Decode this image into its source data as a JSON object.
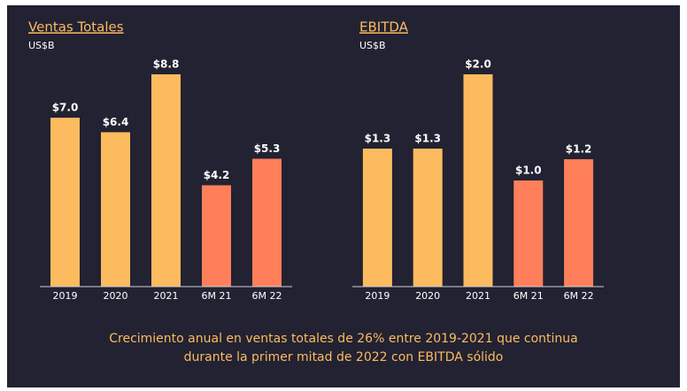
{
  "chart_data": [
    {
      "type": "bar",
      "title": "Ventas Totales",
      "subtitle": "US$B",
      "categories": [
        "2019",
        "2020",
        "2021",
        "6M 21",
        "6M 22"
      ],
      "values": [
        7.0,
        6.4,
        8.8,
        4.2,
        5.3
      ],
      "value_labels": [
        "$7.0",
        "$6.4",
        "$8.8",
        "$4.2",
        "$5.3"
      ],
      "colors": [
        "#fdbb5f",
        "#fdbb5f",
        "#fdbb5f",
        "#ff7f5a",
        "#ff7f5a"
      ]
    },
    {
      "type": "bar",
      "title": "EBITDA",
      "subtitle": "US$B",
      "categories": [
        "2019",
        "2020",
        "2021",
        "6M 21",
        "6M 22"
      ],
      "values": [
        1.3,
        1.3,
        2.0,
        1.0,
        1.2
      ],
      "value_labels": [
        "$1.3",
        "$1.3",
        "$2.0",
        "$1.0",
        "$1.2"
      ],
      "colors": [
        "#fdbb5f",
        "#fdbb5f",
        "#fdbb5f",
        "#ff7f5a",
        "#ff7f5a"
      ]
    }
  ],
  "caption": [
    "Crecimiento anual en ventas totales de 26% entre 2019-2021  que continua",
    "durante la primer mitad de 2022 con EBITDA sólido"
  ]
}
